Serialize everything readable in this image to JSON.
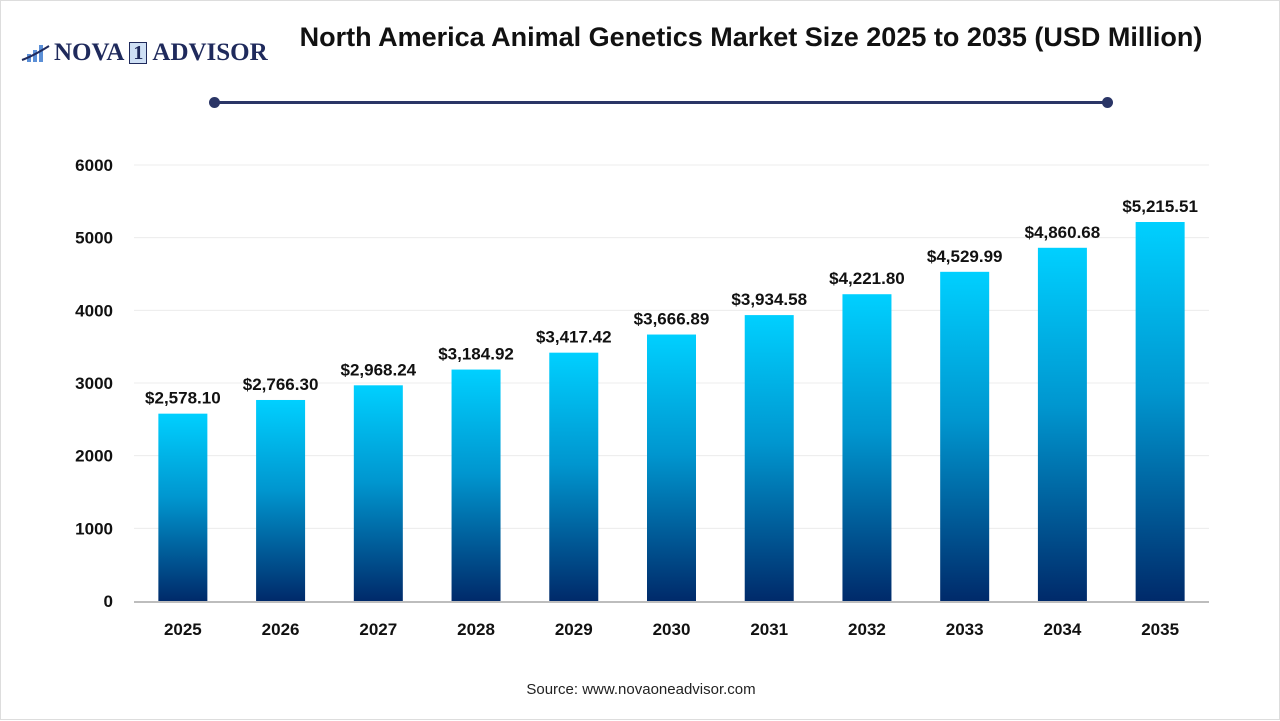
{
  "logo": {
    "text_left": "NOVA",
    "text_mark": "1",
    "text_right": "ADVISOR"
  },
  "title": "North America Animal Genetics Market Size 2025 to 2035 (USD Million)",
  "source": "Source: www.novaoneadvisor.com",
  "colors": {
    "bar_top": "#00D0FF",
    "bar_bottom": "#002A6A",
    "title_rule": "#2a3566",
    "grid": "#ececec",
    "axis": "#bdbdbd"
  },
  "chart_data": {
    "type": "bar",
    "title": "North America Animal Genetics Market Size 2025 to 2035 (USD Million)",
    "categories": [
      "2025",
      "2026",
      "2027",
      "2028",
      "2029",
      "2030",
      "2031",
      "2032",
      "2033",
      "2034",
      "2035"
    ],
    "values": [
      2578.1,
      2766.3,
      2968.24,
      3184.92,
      3417.42,
      3666.89,
      3934.58,
      4221.8,
      4529.99,
      4860.68,
      5215.51
    ],
    "data_labels": [
      "$2,578.10",
      "$2,766.30",
      "$2,968.24",
      "$3,184.92",
      "$3,417.42",
      "$3,666.89",
      "$3,934.58",
      "$4,221.80",
      "$4,529.99",
      "$4,860.68",
      "$5,215.51"
    ],
    "yticks": [
      0,
      1000,
      2000,
      3000,
      4000,
      5000,
      6000
    ],
    "ylim": [
      0,
      6000
    ],
    "xlabel": "",
    "ylabel": "",
    "grid": true,
    "legend": "none"
  }
}
